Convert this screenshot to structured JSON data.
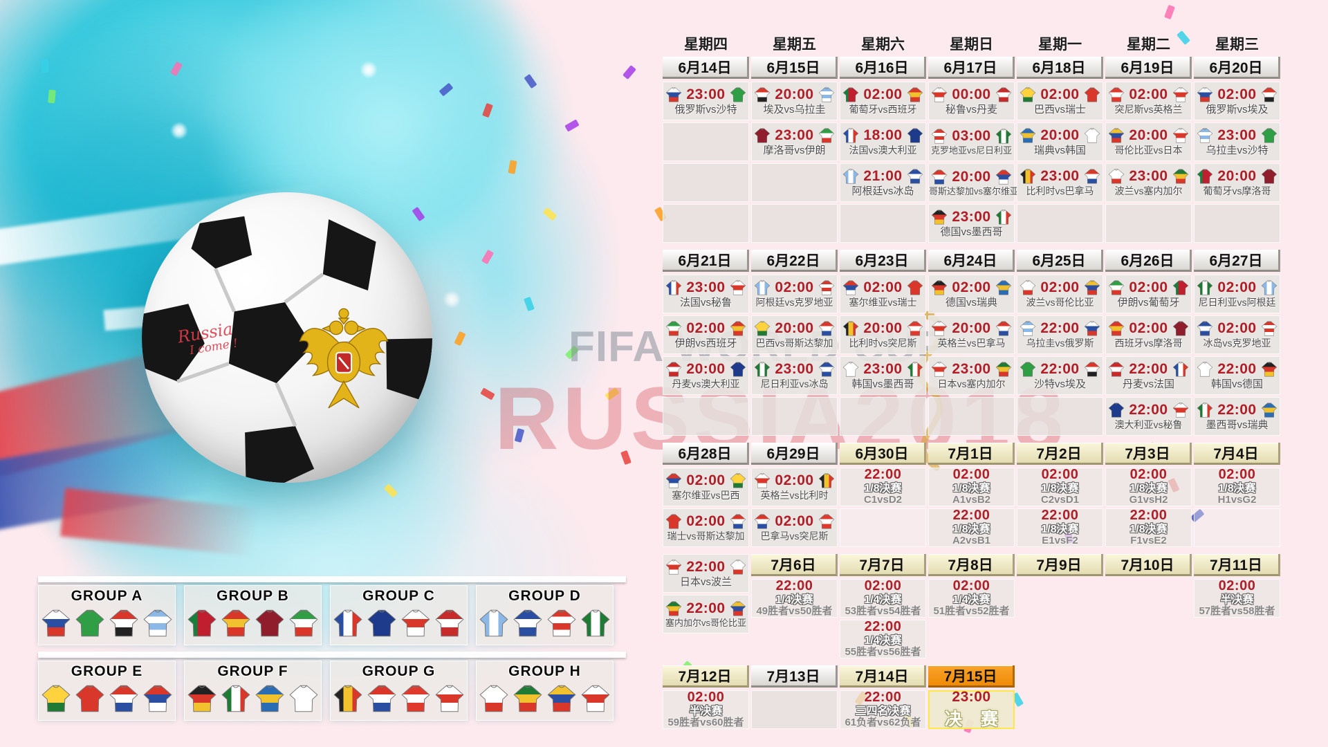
{
  "colors": {
    "accent_red": "#b01e28",
    "header_white": "#e8e5e1",
    "header_cream": "#efe8c2",
    "header_orange": "#f7941d",
    "cell_bg": "#e7e4e1",
    "final_border": "#ffe84a",
    "splash_cyan": "#35c8dd",
    "bg_pink": "#fdeaee"
  },
  "watermark": {
    "line1": "FIFA WORLD CUP",
    "line2": "RUSSIA2018"
  },
  "ball_text": {
    "line1": "Russia",
    "line2": "I come !"
  },
  "weekdays": [
    "星期四",
    "星期五",
    "星期六",
    "星期日",
    "星期一",
    "星期二",
    "星期三"
  ],
  "teams": {
    "俄罗斯": {
      "c": [
        "#ffffff",
        "#2a4fa2",
        "#d8372a"
      ]
    },
    "沙特": {
      "c": [
        "#2f9e44"
      ]
    },
    "埃及": {
      "c": [
        "#d8372a",
        "#ffffff",
        "#222222"
      ]
    },
    "乌拉圭": {
      "c": [
        "#8cb8e8",
        "#ffffff",
        "#8cb8e8",
        "#ffffff"
      ]
    },
    "葡萄牙": {
      "c": [
        "#14803c",
        "#c01f2f",
        "#c01f2f"
      ],
      "dir": "v"
    },
    "西班牙": {
      "c": [
        "#d8372a",
        "#f2c12e",
        "#d8372a"
      ]
    },
    "摩洛哥": {
      "c": [
        "#8f1d2c"
      ]
    },
    "伊朗": {
      "c": [
        "#2f9e44",
        "#ffffff",
        "#d8372a"
      ]
    },
    "法国": {
      "c": [
        "#2a4fa2",
        "#ffffff",
        "#d8372a"
      ],
      "dir": "v"
    },
    "澳大利亚": {
      "c": [
        "#1e3a8a"
      ]
    },
    "秘鲁": {
      "c": [
        "#ffffff",
        "#d8372a",
        "#ffffff"
      ]
    },
    "丹麦": {
      "c": [
        "#c92a2a",
        "#ffffff",
        "#c92a2a"
      ]
    },
    "阿根廷": {
      "c": [
        "#8cb8e8",
        "#ffffff",
        "#8cb8e8"
      ],
      "dir": "v"
    },
    "冰岛": {
      "c": [
        "#2a4fa2",
        "#ffffff",
        "#2a4fa2"
      ]
    },
    "克罗地亚": {
      "c": [
        "#d8372a",
        "#ffffff",
        "#d8372a",
        "#ffffff"
      ]
    },
    "尼日利亚": {
      "c": [
        "#1f7a33",
        "#ffffff",
        "#1f7a33"
      ],
      "dir": "v"
    },
    "哥斯达黎加": {
      "c": [
        "#d8372a",
        "#ffffff",
        "#2a4fa2"
      ]
    },
    "塞尔维亚": {
      "c": [
        "#d8372a",
        "#2a4fa2",
        "#ffffff"
      ]
    },
    "德国": {
      "c": [
        "#222222",
        "#d8372a",
        "#f2c12e"
      ]
    },
    "墨西哥": {
      "c": [
        "#1f7a33",
        "#ffffff",
        "#d8372a"
      ],
      "dir": "v"
    },
    "巴西": {
      "c": [
        "#ffd23e",
        "#ffd23e",
        "#1f7a33"
      ]
    },
    "瑞士": {
      "c": [
        "#d8372a"
      ]
    },
    "瑞典": {
      "c": [
        "#2a6db5",
        "#f2c12e",
        "#2a6db5"
      ]
    },
    "韩国": {
      "c": [
        "#ffffff"
      ]
    },
    "比利时": {
      "c": [
        "#222222",
        "#f2c12e",
        "#d8372a"
      ],
      "dir": "v"
    },
    "巴拿马": {
      "c": [
        "#d8372a",
        "#ffffff",
        "#2a4fa2"
      ]
    },
    "突尼斯": {
      "c": [
        "#e03a2f",
        "#ffffff",
        "#e03a2f"
      ]
    },
    "英格兰": {
      "c": [
        "#ffffff",
        "#d8372a",
        "#ffffff"
      ]
    },
    "波兰": {
      "c": [
        "#ffffff",
        "#ffffff",
        "#d8372a"
      ]
    },
    "塞内加尔": {
      "c": [
        "#1f7a33",
        "#f2c12e",
        "#d8372a"
      ]
    },
    "哥伦比亚": {
      "c": [
        "#f2c12e",
        "#2a4fa2",
        "#d8372a"
      ]
    },
    "日本": {
      "c": [
        "#ffffff",
        "#d8372a",
        "#ffffff"
      ]
    }
  },
  "weeks": [
    {
      "cols": [
        {
          "date": "6月14日",
          "style": "white",
          "cells": [
            {
              "t": "23:00",
              "h": "俄罗斯",
              "a": "沙特",
              "m": "俄罗斯vs沙特"
            },
            "box",
            "box",
            "box"
          ]
        },
        {
          "date": "6月15日",
          "style": "white",
          "cells": [
            {
              "t": "20:00",
              "h": "埃及",
              "a": "乌拉圭",
              "m": "埃及vs乌拉圭"
            },
            {
              "t": "23:00",
              "h": "摩洛哥",
              "a": "伊朗",
              "m": "摩洛哥vs伊朗"
            },
            "box",
            "box"
          ]
        },
        {
          "date": "6月16日",
          "style": "white",
          "cells": [
            {
              "t": "02:00",
              "h": "葡萄牙",
              "a": "西班牙",
              "m": "葡萄牙vs西班牙"
            },
            {
              "t": "18:00",
              "h": "法国",
              "a": "澳大利亚",
              "m": "法国vs澳大利亚"
            },
            {
              "t": "21:00",
              "h": "阿根廷",
              "a": "冰岛",
              "m": "阿根廷vs冰岛"
            },
            "box"
          ]
        },
        {
          "date": "6月17日",
          "style": "white",
          "cells": [
            {
              "t": "00:00",
              "h": "秘鲁",
              "a": "丹麦",
              "m": "秘鲁vs丹麦"
            },
            {
              "t": "03:00",
              "h": "克罗地亚",
              "a": "尼日利亚",
              "m": "克罗地亚vs尼日利亚"
            },
            {
              "t": "20:00",
              "h": "哥斯达黎加",
              "a": "塞尔维亚",
              "m": "哥斯达黎加vs塞尔维亚"
            },
            {
              "t": "23:00",
              "h": "德国",
              "a": "墨西哥",
              "m": "德国vs墨西哥"
            }
          ]
        },
        {
          "date": "6月18日",
          "style": "white",
          "cells": [
            {
              "t": "02:00",
              "h": "巴西",
              "a": "瑞士",
              "m": "巴西vs瑞士"
            },
            {
              "t": "20:00",
              "h": "瑞典",
              "a": "韩国",
              "m": "瑞典vs韩国"
            },
            {
              "t": "23:00",
              "h": "比利时",
              "a": "巴拿马",
              "m": "比利时vs巴拿马"
            },
            "box"
          ]
        },
        {
          "date": "6月19日",
          "style": "white",
          "cells": [
            {
              "t": "02:00",
              "h": "突尼斯",
              "a": "英格兰",
              "m": "突尼斯vs英格兰"
            },
            {
              "t": "20:00",
              "h": "哥伦比亚",
              "a": "日本",
              "m": "哥伦比亚vs日本"
            },
            {
              "t": "23:00",
              "h": "波兰",
              "a": "塞内加尔",
              "m": "波兰vs塞内加尔"
            },
            "box"
          ]
        },
        {
          "date": "6月20日",
          "style": "white",
          "cells": [
            {
              "t": "02:00",
              "h": "俄罗斯",
              "a": "埃及",
              "m": "俄罗斯vs埃及"
            },
            {
              "t": "23:00",
              "h": "乌拉圭",
              "a": "沙特",
              "m": "乌拉圭vs沙特"
            },
            {
              "t": "20:00",
              "h": "葡萄牙",
              "a": "摩洛哥",
              "m": "葡萄牙vs摩洛哥"
            },
            "box"
          ]
        }
      ]
    },
    {
      "cols": [
        {
          "date": "6月21日",
          "style": "white",
          "cells": [
            {
              "t": "23:00",
              "h": "法国",
              "a": "秘鲁",
              "m": "法国vs秘鲁"
            },
            {
              "t": "02:00",
              "h": "伊朗",
              "a": "西班牙",
              "m": "伊朗vs西班牙"
            },
            {
              "t": "20:00",
              "h": "丹麦",
              "a": "澳大利亚",
              "m": "丹麦vs澳大利亚"
            },
            "box"
          ]
        },
        {
          "date": "6月22日",
          "style": "white",
          "cells": [
            {
              "t": "02:00",
              "h": "阿根廷",
              "a": "克罗地亚",
              "m": "阿根廷vs克罗地亚"
            },
            {
              "t": "20:00",
              "h": "巴西",
              "a": "哥斯达黎加",
              "m": "巴西vs哥斯达黎加"
            },
            {
              "t": "23:00",
              "h": "尼日利亚",
              "a": "冰岛",
              "m": "尼日利亚vs冰岛"
            },
            "box"
          ]
        },
        {
          "date": "6月23日",
          "style": "white",
          "cells": [
            {
              "t": "02:00",
              "h": "塞尔维亚",
              "a": "瑞士",
              "m": "塞尔维亚vs瑞士"
            },
            {
              "t": "20:00",
              "h": "比利时",
              "a": "突尼斯",
              "m": "比利时vs突尼斯"
            },
            {
              "t": "23:00",
              "h": "韩国",
              "a": "墨西哥",
              "m": "韩国vs墨西哥"
            },
            "box"
          ]
        },
        {
          "date": "6月24日",
          "style": "white",
          "cells": [
            {
              "t": "02:00",
              "h": "德国",
              "a": "瑞典",
              "m": "德国vs瑞典"
            },
            {
              "t": "20:00",
              "h": "英格兰",
              "a": "巴拿马",
              "m": "英格兰vs巴拿马"
            },
            {
              "t": "23:00",
              "h": "日本",
              "a": "塞内加尔",
              "m": "日本vs塞内加尔"
            },
            "box"
          ]
        },
        {
          "date": "6月25日",
          "style": "white",
          "cells": [
            {
              "t": "02:00",
              "h": "波兰",
              "a": "哥伦比亚",
              "m": "波兰vs哥伦比亚"
            },
            {
              "t": "22:00",
              "h": "乌拉圭",
              "a": "俄罗斯",
              "m": "乌拉圭vs俄罗斯"
            },
            {
              "t": "22:00",
              "h": "沙特",
              "a": "埃及",
              "m": "沙特vs埃及"
            },
            "box"
          ]
        },
        {
          "date": "6月26日",
          "style": "white",
          "cells": [
            {
              "t": "02:00",
              "h": "伊朗",
              "a": "葡萄牙",
              "m": "伊朗vs葡萄牙"
            },
            {
              "t": "02:00",
              "h": "西班牙",
              "a": "摩洛哥",
              "m": "西班牙vs摩洛哥"
            },
            {
              "t": "22:00",
              "h": "丹麦",
              "a": "法国",
              "m": "丹麦vs法国"
            },
            {
              "t": "22:00",
              "h": "澳大利亚",
              "a": "秘鲁",
              "m": "澳大利亚vs秘鲁"
            }
          ]
        },
        {
          "date": "6月27日",
          "style": "white",
          "cells": [
            {
              "t": "02:00",
              "h": "尼日利亚",
              "a": "阿根廷",
              "m": "尼日利亚vs阿根廷"
            },
            {
              "t": "02:00",
              "h": "冰岛",
              "a": "克罗地亚",
              "m": "冰岛vs克罗地亚"
            },
            {
              "t": "22:00",
              "h": "韩国",
              "a": "德国",
              "m": "韩国vs德国"
            },
            {
              "t": "22:00",
              "h": "墨西哥",
              "a": "瑞典",
              "m": "墨西哥vs瑞典"
            }
          ]
        }
      ]
    },
    {
      "cols": [
        {
          "date": "6月28日",
          "style": "white",
          "cells": [
            {
              "t": "02:00",
              "h": "塞尔维亚",
              "a": "巴西",
              "m": "塞尔维亚vs巴西"
            },
            {
              "t": "02:00",
              "h": "瑞士",
              "a": "哥斯达黎加",
              "m": "瑞士vs哥斯达黎加"
            }
          ]
        },
        {
          "date": "6月29日",
          "style": "white",
          "cells": [
            {
              "t": "02:00",
              "h": "英格兰",
              "a": "比利时",
              "m": "英格兰vs比利时"
            },
            {
              "t": "02:00",
              "h": "巴拿马",
              "a": "突尼斯",
              "m": "巴拿马vs突尼斯"
            }
          ]
        },
        {
          "date": "6月30日",
          "style": "cream",
          "cells": [
            {
              "t": "22:00",
              "s": "1/8决赛",
              "m": "C1vsD2"
            },
            "faint"
          ]
        },
        {
          "date": "7月1日",
          "style": "cream",
          "cells": [
            {
              "t": "02:00",
              "s": "1/8决赛",
              "m": "A1vsB2"
            },
            {
              "t": "22:00",
              "s": "1/8决赛",
              "m": "A2vsB1"
            }
          ]
        },
        {
          "date": "7月2日",
          "style": "cream",
          "cells": [
            {
              "t": "02:00",
              "s": "1/8决赛",
              "m": "C2vsD1"
            },
            {
              "t": "22:00",
              "s": "1/8决赛",
              "m": "E1vsF2"
            }
          ]
        },
        {
          "date": "7月3日",
          "style": "cream",
          "cells": [
            {
              "t": "02:00",
              "s": "1/8决赛",
              "m": "G1vsH2"
            },
            {
              "t": "22:00",
              "s": "1/8决赛",
              "m": "F1vsE2"
            }
          ]
        },
        {
          "date": "7月4日",
          "style": "cream",
          "cells": [
            {
              "t": "02:00",
              "s": "1/8决赛",
              "m": "H1vsG2"
            },
            "faint"
          ]
        }
      ]
    },
    {
      "cols": [
        {
          "date": null,
          "cells": [
            {
              "t": "22:00",
              "h": "日本",
              "a": "波兰",
              "m": "日本vs波兰"
            },
            {
              "t": "22:00",
              "h": "塞内加尔",
              "a": "哥伦比亚",
              "m": "塞内加尔vs哥伦比亚"
            }
          ]
        },
        {
          "date": "7月6日",
          "style": "cream",
          "cells": [
            {
              "t": "22:00",
              "s": "1/4决赛",
              "m": "49胜者vs50胜者"
            },
            null
          ]
        },
        {
          "date": "7月7日",
          "style": "cream",
          "cells": [
            {
              "t": "02:00",
              "s": "1/4决赛",
              "m": "53胜者vs54胜者"
            },
            {
              "t": "22:00",
              "s": "1/4决赛",
              "m": "55胜者vs56胜者"
            }
          ]
        },
        {
          "date": "7月8日",
          "style": "cream",
          "cells": [
            {
              "t": "02:00",
              "s": "1/4决赛",
              "m": "51胜者vs52胜者"
            },
            null
          ]
        },
        {
          "date": "7月9日",
          "style": "cream",
          "cells": [
            null,
            null
          ]
        },
        {
          "date": "7月10日",
          "style": "cream",
          "cells": [
            null,
            null
          ]
        },
        {
          "date": "7月11日",
          "style": "cream",
          "cells": [
            {
              "t": "02:00",
              "s": "半决赛",
              "m": "57胜者vs58胜者"
            },
            null
          ]
        }
      ]
    },
    {
      "cols": [
        {
          "date": "7月12日",
          "style": "cream",
          "cells": [
            {
              "t": "02:00",
              "s": "半决赛",
              "m": "59胜者vs60胜者"
            }
          ]
        },
        {
          "date": "7月13日",
          "style": "white",
          "cells": [
            "box"
          ]
        },
        {
          "date": "7月14日",
          "style": "cream",
          "cells": [
            {
              "t": "22:00",
              "s": "三四名决赛",
              "m": "61负者vs62负者"
            }
          ]
        },
        {
          "date": "7月15日",
          "style": "orange",
          "cells": [
            {
              "t": "23:00",
              "f": "决 赛"
            }
          ]
        },
        {
          "date": null,
          "cells": [
            null
          ]
        },
        {
          "date": null,
          "cells": [
            null
          ]
        },
        {
          "date": null,
          "cells": [
            null
          ]
        }
      ]
    }
  ],
  "groups": [
    {
      "name": "GROUP A",
      "teams": [
        "俄罗斯",
        "沙特",
        "埃及",
        "乌拉圭"
      ]
    },
    {
      "name": "GROUP B",
      "teams": [
        "葡萄牙",
        "西班牙",
        "摩洛哥",
        "伊朗"
      ]
    },
    {
      "name": "GROUP C",
      "teams": [
        "法国",
        "澳大利亚",
        "秘鲁",
        "丹麦"
      ]
    },
    {
      "name": "GROUP D",
      "teams": [
        "阿根廷",
        "冰岛",
        "克罗地亚",
        "尼日利亚"
      ]
    },
    {
      "name": "GROUP E",
      "teams": [
        "巴西",
        "瑞士",
        "哥斯达黎加",
        "塞尔维亚"
      ]
    },
    {
      "name": "GROUP F",
      "teams": [
        "德国",
        "墨西哥",
        "瑞典",
        "韩国"
      ]
    },
    {
      "name": "GROUP G",
      "teams": [
        "比利时",
        "巴拿马",
        "突尼斯",
        "英格兰"
      ]
    },
    {
      "name": "GROUP H",
      "teams": [
        "波兰",
        "塞内加尔",
        "哥伦比亚",
        "日本"
      ]
    }
  ]
}
